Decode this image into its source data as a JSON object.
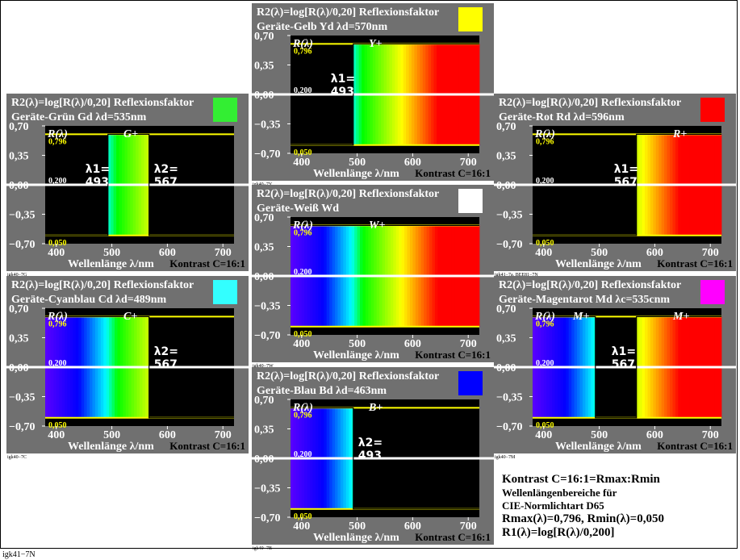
{
  "footer_label": "igk41−7N",
  "legend": {
    "line1": "Kontrast C=16:1=Rmax:Rmin",
    "line2": "Wellenlängenbereiche für",
    "line3": "CIE-Normlichtart D65",
    "line4": "Rmax(λ)=0,796, Rmin(λ)=0,050",
    "line5": "R1(λ)=log[R(λ)/0,200]"
  },
  "common": {
    "title": "R2(λ)=log[R(λ)/0,20] Reflexionsfaktor",
    "xlabel": "Wellenlänge λ/nm",
    "contrast": "Kontrast C=16:1",
    "ylabel_curve": "R(λ)",
    "ytick_labels": [
      "0,70",
      "0,35",
      "0,00",
      "−0,35",
      "−0,70"
    ],
    "xtick_labels": [
      "400",
      "500",
      "600",
      "700"
    ],
    "level_labels": [
      "0,796",
      "0,200",
      "0,050"
    ]
  },
  "chart_data": [
    {
      "type": "area",
      "id": "yellow",
      "subtitle": "Geräte-Gelb Yd   λd=570nm",
      "swatch": "#ffff00",
      "curve_label": "Y+",
      "code": "igk40−7Y",
      "x": [
        380,
        493,
        493,
        720
      ],
      "y": [
        -0.602,
        -0.602,
        0.6,
        0.6
      ],
      "bands": [
        [
          493,
          720
        ]
      ],
      "annotations": [
        {
          "text": "λ1=",
          "value": "493",
          "side": "left"
        }
      ],
      "xlim": [
        380,
        720
      ],
      "ylim": [
        -0.7,
        0.7
      ]
    },
    {
      "type": "area",
      "id": "green",
      "subtitle": "Geräte-Grün Gd   λd=535nm",
      "swatch": "#33ee33",
      "curve_label": "G+",
      "code": "igk40−7G",
      "x": [
        380,
        493,
        493,
        567,
        567,
        720
      ],
      "y": [
        -0.602,
        -0.602,
        0.6,
        0.6,
        -0.602,
        -0.602
      ],
      "bands": [
        [
          493,
          567
        ]
      ],
      "annotations": [
        {
          "text": "λ1=",
          "value": "493",
          "side": "left"
        },
        {
          "text": "λ2=",
          "value": "567",
          "side": "right"
        }
      ],
      "xlim": [
        380,
        720
      ],
      "ylim": [
        -0.7,
        0.7
      ]
    },
    {
      "type": "area",
      "id": "white",
      "subtitle": "Geräte-Weiß Wd",
      "swatch": "#ffffff",
      "curve_label": "W+",
      "code": "igk40−7W",
      "x": [
        380,
        720
      ],
      "y": [
        0.6,
        0.6
      ],
      "bands": [
        [
          380,
          720
        ]
      ],
      "annotations": [],
      "xlim": [
        380,
        720
      ],
      "ylim": [
        -0.7,
        0.7
      ]
    },
    {
      "type": "area",
      "id": "red",
      "subtitle": "Geräte-Rot Rd   λd=596nm",
      "swatch": "#ff0000",
      "curve_label": "R+",
      "code": "igk41−7a, BEE81−7N",
      "x": [
        380,
        567,
        567,
        720
      ],
      "y": [
        -0.602,
        -0.602,
        0.6,
        0.6
      ],
      "bands": [
        [
          567,
          720
        ]
      ],
      "annotations": [
        {
          "text": "λ1=",
          "value": "567",
          "side": "left"
        }
      ],
      "xlim": [
        380,
        720
      ],
      "ylim": [
        -0.7,
        0.7
      ]
    },
    {
      "type": "area",
      "id": "cyan",
      "subtitle": "Geräte-Cyanblau Cd   λd=489nm",
      "swatch": "#33ffff",
      "curve_label": "C+",
      "code": "igk40−7C",
      "x": [
        380,
        567,
        567,
        720
      ],
      "y": [
        0.6,
        0.6,
        -0.602,
        -0.602
      ],
      "bands": [
        [
          380,
          567
        ]
      ],
      "annotations": [
        {
          "text": "λ2=",
          "value": "567",
          "side": "right"
        }
      ],
      "xlim": [
        380,
        720
      ],
      "ylim": [
        -0.7,
        0.7
      ]
    },
    {
      "type": "area",
      "id": "blue",
      "subtitle": "Geräte-Blau Bd   λd=463nm",
      "swatch": "#0000ff",
      "curve_label": "B+",
      "code": "igk40−7B",
      "x": [
        380,
        493,
        493,
        720
      ],
      "y": [
        0.6,
        0.6,
        -0.602,
        -0.602
      ],
      "bands": [
        [
          380,
          493
        ]
      ],
      "annotations": [
        {
          "text": "λ2=",
          "value": "493",
          "side": "right"
        }
      ],
      "xlim": [
        380,
        720
      ],
      "ylim": [
        -0.7,
        0.7
      ]
    },
    {
      "type": "area",
      "id": "magenta",
      "subtitle": "Geräte-Magentarot Md   λc=535cnm",
      "swatch": "#ff00ff",
      "curve_label": "M+",
      "code": "igk40−7M",
      "x": [
        380,
        493,
        493,
        567,
        567,
        720
      ],
      "y": [
        0.6,
        0.6,
        -0.602,
        -0.602,
        0.6,
        0.6
      ],
      "bands": [
        [
          380,
          493
        ],
        [
          567,
          720
        ]
      ],
      "annotations": [
        {
          "text": "λ1=",
          "value": "567",
          "side": "center"
        }
      ],
      "curve_label_2": "M+",
      "xlim": [
        380,
        720
      ],
      "ylim": [
        -0.7,
        0.7
      ]
    }
  ]
}
